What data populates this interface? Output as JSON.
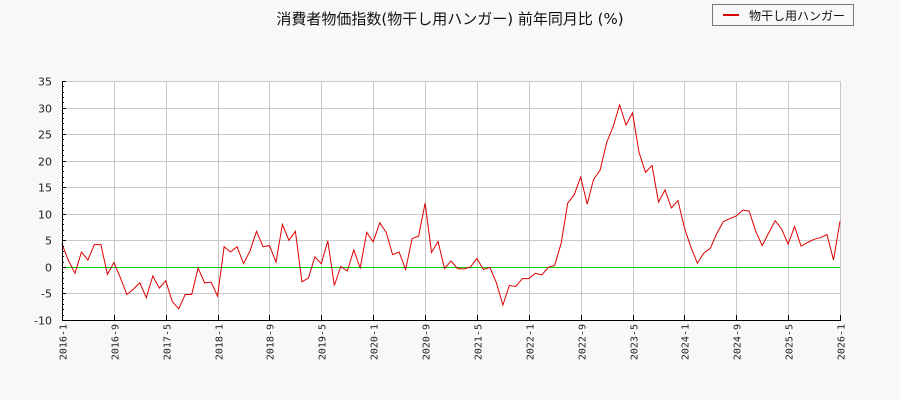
{
  "chart_data": {
    "type": "line",
    "title": "消費者物価指数(物干し用ハンガー) 前年同月比 (%)",
    "xlabel": "",
    "ylabel": "",
    "ylim": [
      -10,
      35
    ],
    "yticks": [
      35,
      30,
      25,
      20,
      15,
      10,
      5,
      0,
      -5,
      -10
    ],
    "xticks": [
      "2016-1",
      "2016-9",
      "2017-5",
      "2018-1",
      "2018-9",
      "2019-5",
      "2020-1",
      "2020-9",
      "2021-5",
      "2022-1",
      "2022-9",
      "2023-5",
      "2024-1",
      "2024-9",
      "2025-5",
      "2026-1"
    ],
    "x_start": "2016-1",
    "x_end": "2026-1",
    "grid": true,
    "legend_position": "top-right",
    "zero_line_color": "#00cc00",
    "series": [
      {
        "name": "物干し用ハンガー",
        "color": "#dd0000",
        "values": [
          4.3,
          1.2,
          -1.2,
          2.8,
          1.3,
          4.2,
          4.2,
          -1.4,
          0.8,
          -2.0,
          -5.2,
          -4.2,
          -3.0,
          -5.8,
          -1.7,
          -4.0,
          -2.6,
          -6.5,
          -7.9,
          -5.2,
          -5.2,
          -0.2,
          -3.0,
          -2.9,
          -5.5,
          3.8,
          2.8,
          3.8,
          0.6,
          3.0,
          6.7,
          3.8,
          4.0,
          0.9,
          8.0,
          5.0,
          6.7,
          -2.8,
          -2.1,
          1.9,
          0.6,
          4.9,
          -3.5,
          0.1,
          -0.8,
          3.2,
          -0.2,
          6.5,
          4.7,
          8.3,
          6.5,
          2.3,
          2.8,
          -0.5,
          5.3,
          5.8,
          12.0,
          2.7,
          4.8,
          -0.3,
          1.1,
          -0.3,
          -0.4,
          0.0,
          1.6,
          -0.5,
          -0.1,
          -3.0,
          -7.2,
          -3.5,
          -3.7,
          -2.2,
          -2.2,
          -1.2,
          -1.5,
          -0.1,
          0.3,
          4.5,
          12.0,
          13.6,
          16.9,
          11.8,
          16.5,
          18.2,
          23.4,
          26.4,
          30.5,
          26.7,
          29.0,
          21.6,
          17.8,
          19.1,
          12.2,
          14.5,
          11.1,
          12.5,
          7.4,
          3.7,
          0.7,
          2.6,
          3.5,
          6.3,
          8.5,
          9.1,
          9.6,
          10.7,
          10.5,
          6.7,
          4.0,
          6.4,
          8.7,
          7.1,
          4.3,
          7.6,
          3.9,
          4.6,
          5.2,
          5.5,
          6.1,
          1.3,
          8.6
        ]
      }
    ]
  },
  "legend": {
    "label": "物干し用ハンガー"
  }
}
